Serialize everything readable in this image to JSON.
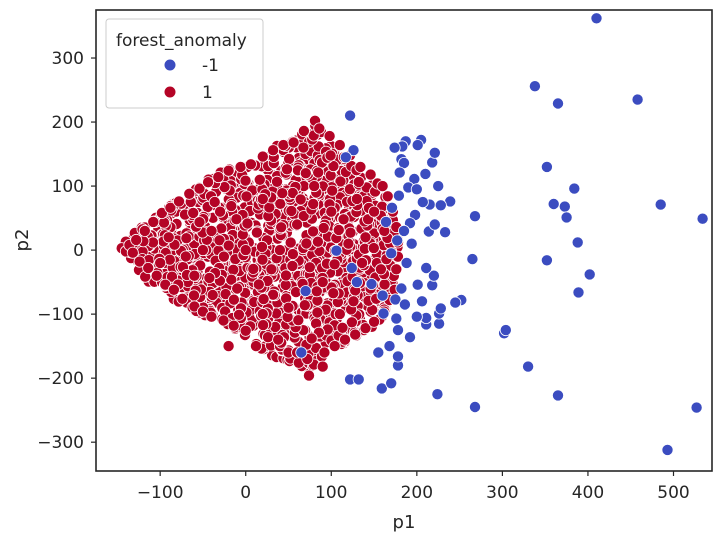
{
  "chart_data": {
    "type": "scatter",
    "title": "",
    "xlabel": "p1",
    "ylabel": "p2",
    "xlim": [
      -175,
      545
    ],
    "ylim": [
      -345,
      375
    ],
    "xticks": [
      -100,
      0,
      100,
      200,
      300,
      400,
      500
    ],
    "yticks": [
      -300,
      -200,
      -100,
      0,
      100,
      200,
      300
    ],
    "x_tick_labels": [
      "−100",
      "0",
      "100",
      "200",
      "300",
      "400",
      "500"
    ],
    "y_tick_labels": [
      "−300",
      "−200",
      "−100",
      "0",
      "100",
      "200",
      "300"
    ],
    "grid": false,
    "legend": {
      "title": "forest_anomaly",
      "placement": "top-left",
      "entries": [
        "-1",
        "1"
      ]
    },
    "series": [
      {
        "name": "-1",
        "color": "#3b4cc0",
        "points": [
          [
            410,
            362
          ],
          [
            338,
            256
          ],
          [
            458,
            235
          ],
          [
            365,
            229
          ],
          [
            122,
            210
          ],
          [
            352,
            130
          ],
          [
            384,
            96
          ],
          [
            360,
            72
          ],
          [
            373,
            68
          ],
          [
            485,
            71
          ],
          [
            534,
            49
          ],
          [
            375,
            51
          ],
          [
            388,
            12
          ],
          [
            268,
            53
          ],
          [
            239,
            76
          ],
          [
            402,
            -38
          ],
          [
            352,
            -16
          ],
          [
            265,
            -14
          ],
          [
            389,
            -66
          ],
          [
            302,
            -130
          ],
          [
            304,
            -125
          ],
          [
            330,
            -182
          ],
          [
            252,
            -78
          ],
          [
            365,
            -227
          ],
          [
            224,
            -225
          ],
          [
            268,
            -245
          ],
          [
            527,
            -246
          ],
          [
            493,
            -312
          ],
          [
            159,
            -216
          ],
          [
            170,
            -208
          ],
          [
            122,
            -202
          ],
          [
            132,
            -202
          ],
          [
            178,
            -180
          ],
          [
            178,
            -166
          ],
          [
            192,
            -136
          ],
          [
            168,
            -150
          ],
          [
            155,
            -160
          ],
          [
            226,
            -115
          ],
          [
            211,
            -116
          ],
          [
            211,
            -106
          ],
          [
            226,
            -99
          ],
          [
            228,
            -91
          ],
          [
            245,
            -82
          ],
          [
            218,
            -55
          ],
          [
            220,
            -40
          ],
          [
            211,
            -28
          ],
          [
            214,
            29
          ],
          [
            221,
            40
          ],
          [
            233,
            28
          ],
          [
            215,
            71
          ],
          [
            228,
            70
          ],
          [
            225,
            100
          ],
          [
            218,
            137
          ],
          [
            221,
            152
          ],
          [
            205,
            172
          ],
          [
            187,
            170
          ],
          [
            183,
            162
          ],
          [
            201,
            164
          ],
          [
            174,
            160
          ],
          [
            182,
            142
          ],
          [
            185,
            136
          ],
          [
            180,
            121
          ],
          [
            197,
            111
          ],
          [
            190,
            98
          ],
          [
            210,
            119
          ],
          [
            179,
            85
          ],
          [
            207,
            75
          ],
          [
            200,
            95
          ],
          [
            198,
            55
          ],
          [
            192,
            42
          ],
          [
            171,
            66
          ],
          [
            185,
            30
          ],
          [
            177,
            15
          ],
          [
            170,
            -5
          ],
          [
            188,
            -20
          ],
          [
            201,
            -54
          ],
          [
            182,
            -60
          ],
          [
            175,
            -77
          ],
          [
            186,
            -85
          ],
          [
            176,
            -107
          ],
          [
            178,
            -125
          ],
          [
            161,
            -99
          ],
          [
            130,
            -50
          ],
          [
            126,
            156
          ],
          [
            117,
            145
          ],
          [
            124,
            -28
          ],
          [
            70,
            -64
          ],
          [
            65,
            -160
          ],
          [
            147,
            -53
          ],
          [
            106,
            -1
          ],
          [
            194,
            10
          ],
          [
            164,
            44
          ],
          [
            206,
            -80
          ],
          [
            200,
            -104
          ],
          [
            160,
            -71
          ]
        ]
      },
      {
        "name": "1",
        "color": "#b40426",
        "boundary": [
          [
            -145,
            4
          ],
          [
            -134,
            28
          ],
          [
            -118,
            42
          ],
          [
            -98,
            62
          ],
          [
            -78,
            78
          ],
          [
            -58,
            96
          ],
          [
            -38,
            118
          ],
          [
            -18,
            128
          ],
          [
            2,
            134
          ],
          [
            20,
            150
          ],
          [
            38,
            164
          ],
          [
            55,
            170
          ],
          [
            68,
            188
          ],
          [
            82,
            200
          ],
          [
            96,
            178
          ],
          [
            108,
            160
          ],
          [
            118,
            142
          ],
          [
            128,
            128
          ],
          [
            140,
            110
          ],
          [
            150,
            98
          ],
          [
            160,
            92
          ],
          [
            168,
            80
          ],
          [
            172,
            62
          ],
          [
            176,
            40
          ],
          [
            178,
            20
          ],
          [
            180,
            -2
          ],
          [
            178,
            -24
          ],
          [
            176,
            -48
          ],
          [
            172,
            -70
          ],
          [
            166,
            -86
          ],
          [
            160,
            -104
          ],
          [
            150,
            -118
          ],
          [
            138,
            -130
          ],
          [
            124,
            -140
          ],
          [
            108,
            -150
          ],
          [
            92,
            -162
          ],
          [
            76,
            -186
          ],
          [
            60,
            -182
          ],
          [
            46,
            -174
          ],
          [
            30,
            -166
          ],
          [
            14,
            -150
          ],
          [
            -2,
            -136
          ],
          [
            -20,
            -120
          ],
          [
            -38,
            -110
          ],
          [
            -58,
            -96
          ],
          [
            -78,
            -82
          ],
          [
            -98,
            -66
          ],
          [
            -118,
            -46
          ],
          [
            -134,
            -24
          ]
        ],
        "points": [
          [
            -145,
            3
          ],
          [
            -140,
            -2
          ],
          [
            -136,
            8
          ],
          [
            -132,
            -4
          ],
          [
            -128,
            16
          ],
          [
            -124,
            -18
          ],
          [
            -118,
            30
          ],
          [
            -114,
            -28
          ],
          [
            -108,
            44
          ],
          [
            -104,
            -40
          ],
          [
            -98,
            58
          ],
          [
            -94,
            -54
          ],
          [
            -88,
            66
          ],
          [
            -84,
            -62
          ],
          [
            -78,
            76
          ],
          [
            -74,
            -76
          ],
          [
            -66,
            88
          ],
          [
            -60,
            -88
          ],
          [
            -54,
            96
          ],
          [
            -50,
            -96
          ],
          [
            -44,
            106
          ],
          [
            -40,
            -104
          ],
          [
            -32,
            114
          ],
          [
            -26,
            -110
          ],
          [
            -20,
            124
          ],
          [
            -14,
            -118
          ],
          [
            -6,
            130
          ],
          [
            0,
            -126
          ],
          [
            6,
            134
          ],
          [
            12,
            -150
          ],
          [
            20,
            146
          ],
          [
            26,
            -136
          ],
          [
            32,
            156
          ],
          [
            38,
            -140
          ],
          [
            44,
            164
          ],
          [
            50,
            -160
          ],
          [
            56,
            168
          ],
          [
            62,
            -176
          ],
          [
            68,
            186
          ],
          [
            74,
            -196
          ],
          [
            81,
            202
          ],
          [
            86,
            190
          ],
          [
            92,
            -160
          ],
          [
            98,
            178
          ],
          [
            104,
            -150
          ],
          [
            110,
            164
          ],
          [
            116,
            -140
          ],
          [
            122,
            148
          ],
          [
            128,
            -132
          ],
          [
            134,
            130
          ],
          [
            140,
            -122
          ],
          [
            146,
            118
          ],
          [
            150,
            -112
          ],
          [
            154,
            104
          ],
          [
            160,
            100
          ],
          [
            162,
            -96
          ],
          [
            166,
            84
          ],
          [
            168,
            -78
          ],
          [
            172,
            60
          ],
          [
            174,
            -62
          ],
          [
            176,
            36
          ],
          [
            178,
            12
          ],
          [
            176,
            -30
          ],
          [
            162,
            30
          ],
          [
            158,
            -30
          ],
          [
            150,
            60
          ],
          [
            146,
            -60
          ],
          [
            140,
            20
          ],
          [
            136,
            -20
          ],
          [
            130,
            80
          ],
          [
            126,
            -80
          ],
          [
            -20,
            -150
          ],
          [
            90,
            -182
          ],
          [
            72,
            -170
          ],
          [
            60,
            -160
          ],
          [
            -60,
            -40
          ],
          [
            -30,
            60
          ],
          [
            0,
            0
          ],
          [
            30,
            -30
          ],
          [
            60,
            40
          ],
          [
            90,
            -50
          ],
          [
            120,
            10
          ],
          [
            -90,
            20
          ],
          [
            -100,
            -20
          ],
          [
            -70,
            -10
          ],
          [
            -40,
            30
          ],
          [
            -10,
            -60
          ],
          [
            20,
            80
          ],
          [
            50,
            -90
          ],
          [
            80,
            100
          ],
          [
            110,
            -100
          ],
          [
            20,
            -100
          ],
          [
            -50,
            0
          ],
          [
            40,
            0
          ],
          [
            100,
            60
          ]
        ]
      }
    ]
  }
}
